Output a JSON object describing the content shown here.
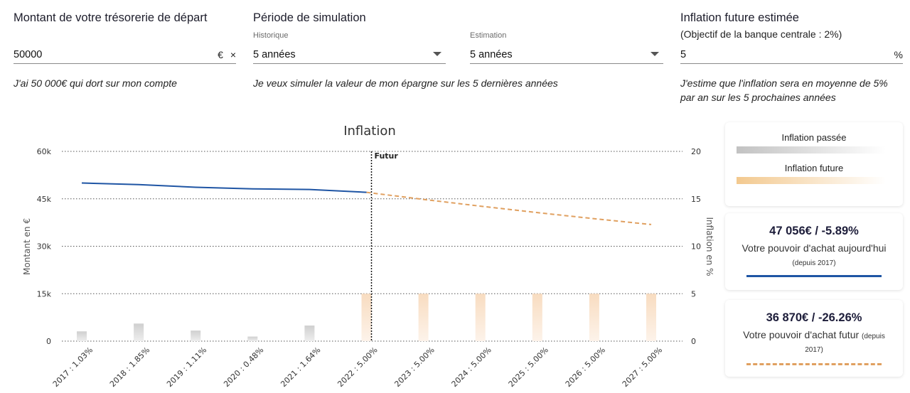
{
  "treasury": {
    "title": "Montant de votre trésorerie de départ",
    "value": "50000",
    "currency": "€",
    "clear": "×",
    "hint": "J'ai 50 000€ qui dort sur mon compte"
  },
  "period": {
    "title": "Période de simulation",
    "history_label": "Historique",
    "history_value": "5 années",
    "estimate_label": "Estimation",
    "estimate_value": "5 années",
    "hint": "Je veux simuler la valeur de mon épargne sur les 5 dernières années"
  },
  "inflation": {
    "title": "Inflation future estimée",
    "subtitle": "(Objectif de la banque centrale : 2%)",
    "value": "5",
    "unit": "%",
    "hint_line1": "J'estime que l'inflation sera en moyenne de 5%",
    "hint_line2": "par an sur les 5 prochaines années"
  },
  "legend": {
    "past": "Inflation passée",
    "future": "Inflation future",
    "past_color": "#c7c7c7",
    "future_color": "#f3c98f"
  },
  "kpi_today": {
    "value": "47 056€ / -5.89%",
    "label": "Votre pouvoir d'achat aujourd'hui",
    "note": "(depuis 2017)",
    "color": "#1f55a4"
  },
  "kpi_future": {
    "value": "36 870€ / -26.26%",
    "label": "Votre pouvoir d'achat futur",
    "note_a": "(depuis",
    "note_b": "2017)",
    "color": "#e0a060"
  },
  "chart_data": {
    "type": "line",
    "title": "Inflation",
    "ylabel": "Montant en €",
    "y2label": "Inflation en %",
    "ylim": [
      0,
      60000
    ],
    "y2lim": [
      0,
      20
    ],
    "yticks": [
      "0",
      "15k",
      "30k",
      "45k",
      "60k"
    ],
    "y2ticks": [
      "0",
      "5",
      "10",
      "15",
      "20"
    ],
    "grid": true,
    "future_marker_label": "Futur",
    "future_marker_index": 5,
    "categories": [
      "2017 : 1.03%",
      "2018 : 1.85%",
      "2019 : 1.11%",
      "2020 : 0.48%",
      "2021 : 1.64%",
      "2022 : 5.00%",
      "2023 : 5.00%",
      "2024 : 5.00%",
      "2025 : 5.00%",
      "2026 : 5.00%",
      "2027 : 5.00%"
    ],
    "inflation_values": [
      1.03,
      1.85,
      1.11,
      0.48,
      1.64,
      5.0,
      5.0,
      5.0,
      5.0,
      5.0,
      5.0
    ],
    "past_values": [
      50000,
      49500,
      48650,
      48150,
      47950,
      47056
    ],
    "future_values": [
      47056,
      44810,
      42680,
      40640,
      38710,
      36870
    ],
    "line_past_color": "#1f55a4",
    "line_future_color": "#e0a060"
  }
}
